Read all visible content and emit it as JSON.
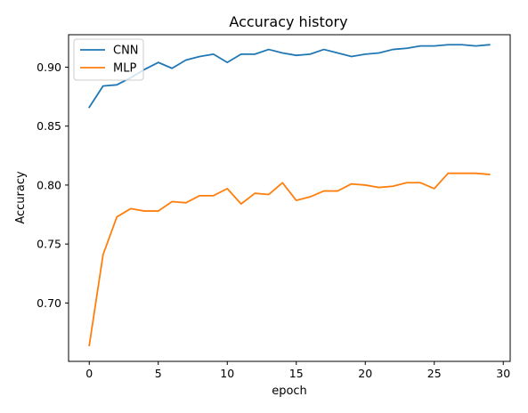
{
  "chart_data": {
    "type": "line",
    "title": "Accuracy history",
    "xlabel": "epoch",
    "ylabel": "Accuracy",
    "xlim": [
      -1.5,
      30.5
    ],
    "ylim": [
      0.6505,
      0.9275
    ],
    "xticks": [
      0,
      5,
      10,
      15,
      20,
      25,
      30
    ],
    "yticks": [
      0.7,
      0.75,
      0.8,
      0.85,
      0.9
    ],
    "grid": false,
    "legend_position": "top-left",
    "x": [
      0,
      1,
      2,
      3,
      4,
      5,
      6,
      7,
      8,
      9,
      10,
      11,
      12,
      13,
      14,
      15,
      16,
      17,
      18,
      19,
      20,
      21,
      22,
      23,
      24,
      25,
      26,
      27,
      28,
      29
    ],
    "series": [
      {
        "name": "CNN",
        "color": "#1f77b4",
        "values": [
          0.866,
          0.884,
          0.885,
          0.891,
          0.898,
          0.904,
          0.899,
          0.906,
          0.909,
          0.911,
          0.904,
          0.911,
          0.911,
          0.915,
          0.912,
          0.91,
          0.911,
          0.915,
          0.912,
          0.909,
          0.911,
          0.912,
          0.915,
          0.916,
          0.918,
          0.918,
          0.919,
          0.919,
          0.918,
          0.919
        ]
      },
      {
        "name": "MLP",
        "color": "#ff7f0e",
        "values": [
          0.664,
          0.741,
          0.773,
          0.78,
          0.778,
          0.778,
          0.786,
          0.785,
          0.791,
          0.791,
          0.797,
          0.784,
          0.793,
          0.792,
          0.802,
          0.787,
          0.79,
          0.795,
          0.795,
          0.801,
          0.8,
          0.798,
          0.799,
          0.802,
          0.802,
          0.797,
          0.81,
          0.81,
          0.81,
          0.809
        ]
      }
    ]
  }
}
